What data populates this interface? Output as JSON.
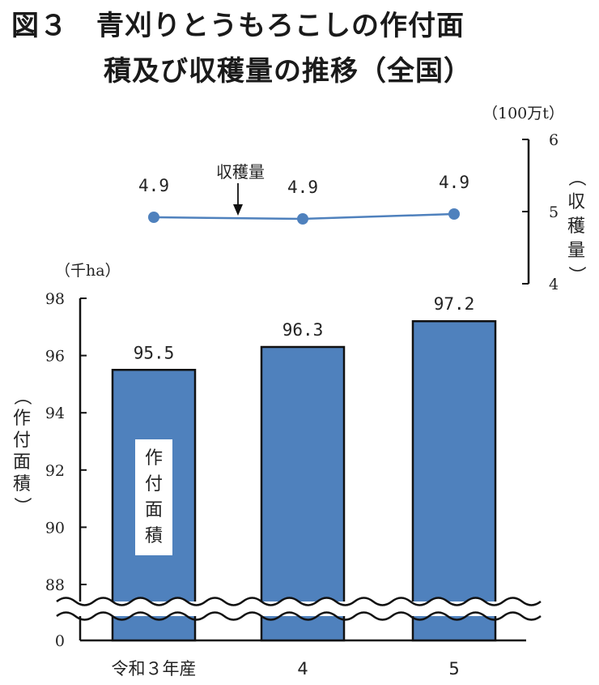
{
  "title": {
    "line1": "図３　青刈りとうもろこしの作付面",
    "line2": "積及び収穫量の推移（全国）"
  },
  "chart_data": {
    "type": "bar+line",
    "categories": [
      "令和３年産",
      "4",
      "5"
    ],
    "series": [
      {
        "name": "作付面積",
        "type": "bar",
        "values": [
          95.5,
          96.3,
          97.2
        ],
        "value_labels": [
          "95.5",
          "96.3",
          "97.2"
        ],
        "color": "#4f81bd"
      },
      {
        "name": "収穫量",
        "type": "line",
        "values": [
          4.9,
          4.9,
          4.9
        ],
        "value_labels": [
          "4.9",
          "4.9",
          "4.9"
        ],
        "color": "#4f81bd"
      }
    ],
    "left_axis": {
      "unit": "（千ha）",
      "label": "（作付面積）",
      "ticks": [
        "98",
        "96",
        "94",
        "92",
        "90",
        "88",
        "0"
      ],
      "range": [
        88,
        98
      ],
      "broken": true
    },
    "right_axis": {
      "unit": "（100万t）",
      "label": "（収穫量）",
      "ticks": [
        "6",
        "5",
        "4"
      ],
      "range": [
        4,
        6
      ]
    },
    "annotations": {
      "bar_inner_label": "作付面積",
      "line_callout": "収穫量"
    },
    "colors": {
      "bar": "#4f81bd",
      "line": "#4f81bd",
      "marker": "#4f81bd"
    }
  }
}
